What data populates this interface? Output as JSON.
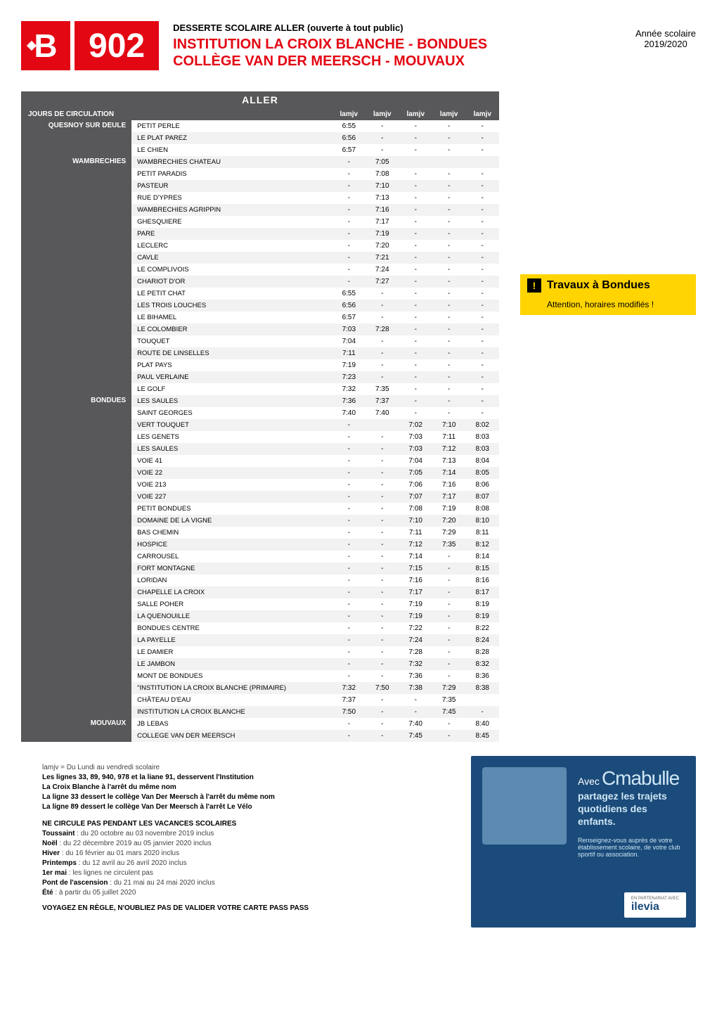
{
  "header": {
    "logo_letter": "B",
    "route_number": "902",
    "subtitle": "DESSERTE SCOLAIRE ALLER (ouverte à tout public)",
    "title_line1": "INSTITUTION LA CROIX BLANCHE - BONDUES",
    "title_line2": "COLLÈGE VAN DER MEERSCH - MOUVAUX",
    "year_label": "Année scolaire",
    "year_value": "2019/2020"
  },
  "table": {
    "aller_label": "ALLER",
    "jours_label": "JOURS DE CIRCULATION",
    "col_headers": [
      "lamjv",
      "lamjv",
      "lamjv",
      "lamjv",
      "lamjv"
    ],
    "zones": [
      {
        "name": "QUESNOY SUR DEULE",
        "rows": [
          {
            "stop": "PETIT PERLE",
            "t": [
              "6:55",
              "-",
              "-",
              "-",
              "-"
            ]
          },
          {
            "stop": "LE PLAT PAREZ",
            "t": [
              "6:56",
              "-",
              "-",
              "-",
              "-"
            ]
          },
          {
            "stop": "LE CHIEN",
            "t": [
              "6:57",
              "-",
              "-",
              "-",
              "-"
            ]
          }
        ]
      },
      {
        "name": "WAMBRECHIES",
        "rows": [
          {
            "stop": "WAMBRECHIES CHATEAU",
            "t": [
              "-",
              "7:05",
              "",
              "",
              ""
            ]
          },
          {
            "stop": "PETIT PARADIS",
            "t": [
              "-",
              "7:08",
              "-",
              "-",
              "-"
            ]
          },
          {
            "stop": "PASTEUR",
            "t": [
              "-",
              "7:10",
              "-",
              "-",
              "-"
            ]
          },
          {
            "stop": "RUE D'YPRES",
            "t": [
              "-",
              "7:13",
              "-",
              "-",
              "-"
            ]
          },
          {
            "stop": "WAMBRECHIES AGRIPPIN",
            "t": [
              "-",
              "7:16",
              "-",
              "-",
              "-"
            ]
          },
          {
            "stop": "GHESQUIERE",
            "t": [
              "-",
              "7:17",
              "-",
              "-",
              "-"
            ]
          },
          {
            "stop": "PARE",
            "t": [
              "-",
              "7:19",
              "-",
              "-",
              "-"
            ]
          },
          {
            "stop": "LECLERC",
            "t": [
              "-",
              "7:20",
              "-",
              "-",
              "-"
            ]
          },
          {
            "stop": "CAVLE",
            "t": [
              "-",
              "7:21",
              "-",
              "-",
              "-"
            ]
          },
          {
            "stop": "LE COMPLIVOIS",
            "t": [
              "-",
              "7:24",
              "-",
              "-",
              "-"
            ]
          },
          {
            "stop": "CHARIOT D'OR",
            "t": [
              "-",
              "7:27",
              "-",
              "-",
              "-"
            ]
          },
          {
            "stop": "LE PETIT CHAT",
            "t": [
              "6:55",
              "-",
              "-",
              "-",
              "-"
            ]
          },
          {
            "stop": "LES TROIS LOUCHES",
            "t": [
              "6:56",
              "-",
              "-",
              "-",
              "-"
            ]
          },
          {
            "stop": "LE BIHAMEL",
            "t": [
              "6:57",
              "-",
              "-",
              "-",
              "-"
            ]
          },
          {
            "stop": "LE COLOMBIER",
            "t": [
              "7:03",
              "7:28",
              "-",
              "-",
              "-"
            ]
          },
          {
            "stop": "TOUQUET",
            "t": [
              "7:04",
              "-",
              "-",
              "-",
              "-"
            ]
          },
          {
            "stop": "ROUTE DE LINSELLES",
            "t": [
              "7:11",
              "-",
              "-",
              "-",
              "-"
            ]
          },
          {
            "stop": "PLAT PAYS",
            "t": [
              "7:19",
              "-",
              "-",
              "-",
              "-"
            ]
          },
          {
            "stop": "PAUL VERLAINE",
            "t": [
              "7:23",
              "-",
              "-",
              "-",
              "-"
            ]
          },
          {
            "stop": "LE GOLF",
            "t": [
              "7:32",
              "7:35",
              "-",
              "-",
              "-"
            ]
          }
        ]
      },
      {
        "name": "BONDUES",
        "rows": [
          {
            "stop": "LES SAULES",
            "t": [
              "7:36",
              "7:37",
              "-",
              "-",
              "-"
            ]
          },
          {
            "stop": "SAINT GEORGES",
            "t": [
              "7:40",
              "7:40",
              "-",
              "-",
              "-"
            ]
          },
          {
            "stop": "VERT TOUQUET",
            "t": [
              "-",
              "",
              "7:02",
              "7:10",
              "8:02"
            ]
          },
          {
            "stop": "LES GENETS",
            "t": [
              "-",
              "-",
              "7:03",
              "7:11",
              "8:03"
            ]
          },
          {
            "stop": "LES SAULES",
            "t": [
              "-",
              "-",
              "7:03",
              "7:12",
              "8:03"
            ]
          },
          {
            "stop": "VOIE 41",
            "t": [
              "-",
              "-",
              "7:04",
              "7:13",
              "8:04"
            ]
          },
          {
            "stop": "VOIE 22",
            "t": [
              "-",
              "-",
              "7:05",
              "7:14",
              "8:05"
            ]
          },
          {
            "stop": "VOIE 213",
            "t": [
              "-",
              "-",
              "7:06",
              "7:16",
              "8:06"
            ]
          },
          {
            "stop": "VOIE 227",
            "t": [
              "-",
              "-",
              "7:07",
              "7:17",
              "8:07"
            ]
          },
          {
            "stop": "PETIT BONDUES",
            "t": [
              "-",
              "-",
              "7:08",
              "7:19",
              "8:08"
            ]
          },
          {
            "stop": "DOMAINE DE LA VIGNE",
            "t": [
              "-",
              "-",
              "7:10",
              "7:20",
              "8:10"
            ]
          },
          {
            "stop": "BAS CHEMIN",
            "t": [
              "-",
              "-",
              "7:11",
              "7:29",
              "8:11"
            ]
          },
          {
            "stop": "HOSPICE",
            "t": [
              "-",
              "-",
              "7:12",
              "7:35",
              "8:12"
            ]
          },
          {
            "stop": "CARROUSEL",
            "t": [
              "-",
              "-",
              "7:14",
              "-",
              "8:14"
            ]
          },
          {
            "stop": "FORT MONTAGNE",
            "t": [
              "-",
              "-",
              "7:15",
              "-",
              "8:15"
            ]
          },
          {
            "stop": "LORIDAN",
            "t": [
              "-",
              "-",
              "7:16",
              "-",
              "8:16"
            ]
          },
          {
            "stop": "CHAPELLE LA CROIX",
            "t": [
              "-",
              "-",
              "7:17",
              "-",
              "8:17"
            ]
          },
          {
            "stop": "SALLE POHER",
            "t": [
              "-",
              "-",
              "7:19",
              "-",
              "8:19"
            ]
          },
          {
            "stop": "LA QUENOUILLE",
            "t": [
              "-",
              "-",
              "7:19",
              "-",
              "8:19"
            ]
          },
          {
            "stop": "BONDUES CENTRE",
            "t": [
              "-",
              "-",
              "7:22",
              "-",
              "8:22"
            ]
          },
          {
            "stop": "LA PAYELLE",
            "t": [
              "-",
              "-",
              "7:24",
              "-",
              "8:24"
            ]
          },
          {
            "stop": "LE DAMIER",
            "t": [
              "-",
              "-",
              "7:28",
              "-",
              "8:28"
            ]
          },
          {
            "stop": "LE JAMBON",
            "t": [
              "-",
              "-",
              "7:32",
              "-",
              "8:32"
            ]
          },
          {
            "stop": "MONT DE BONDUES",
            "t": [
              "-",
              "-",
              "7:36",
              "-",
              "8:36"
            ]
          },
          {
            "stop": "\"INSTITUTION LA CROIX BLANCHE (PRIMAIRE)",
            "t": [
              "7:32",
              "7:50",
              "7:38",
              "7:29",
              "8:38"
            ]
          },
          {
            "stop": "CHÂTEAU D'EAU",
            "t": [
              "7:37",
              "-",
              "-",
              "7:35",
              ""
            ]
          },
          {
            "stop": "INSTITUTION LA CROIX BLANCHE",
            "t": [
              "7:50",
              "-",
              "-",
              "7:45",
              "-"
            ]
          }
        ]
      },
      {
        "name": "MOUVAUX",
        "rows": [
          {
            "stop": "JB LEBAS",
            "t": [
              "-",
              "-",
              "7:40",
              "-",
              "8:40"
            ]
          },
          {
            "stop": "COLLEGE VAN DER MEERSCH",
            "t": [
              "-",
              "-",
              "7:45",
              "-",
              "8:45"
            ]
          }
        ]
      }
    ]
  },
  "alert": {
    "title": "Travaux à Bondues",
    "body": "Attention, horaires modifiés !"
  },
  "notes": {
    "legend": "lamjv = Du Lundi au vendredi scolaire",
    "lines": [
      "Les lignes 33, 89, 940, 978 et la liane 91, desservent l'Institution",
      "La Croix Blanche à l'arrêt du même nom",
      "La ligne 33 dessert le collège Van Der Meersch à l'arrêt du même nom",
      "La ligne 89 dessert le collège Van Der Meersch à l'arrêt Le Vélo"
    ],
    "vac_title": "NE CIRCULE PAS PENDANT LES VACANCES SCOLAIRES",
    "vac": [
      {
        "k": "Toussaint",
        "v": ": du 20 octobre au 03 novembre 2019 inclus"
      },
      {
        "k": "Noël",
        "v": ": du 22 décembre 2019 au 05 janvier 2020 inclus"
      },
      {
        "k": "Hiver",
        "v": ": du 16 février au 01 mars 2020 inclus"
      },
      {
        "k": "Printemps",
        "v": ": du 12 avril au 26 avril 2020 inclus"
      },
      {
        "k": "1er mai",
        "v": ": les lignes ne circulent pas"
      },
      {
        "k": "Pont de l'ascension",
        "v": ": du 21 mai au 24 mai 2020 inclus"
      },
      {
        "k": "Été",
        "v": ": à partir du 05 juillet 2020"
      }
    ],
    "footer_bold": "VOYAGEZ EN RÈGLE, N'OUBLIEZ PAS DE VALIDER VOTRE CARTE PASS PASS"
  },
  "promo": {
    "avec": "Avec",
    "brand": "Cmabulle",
    "tagline": "partagez les trajets quotidiens des enfants.",
    "small": "Renseignez-vous auprès de votre établissement scolaire, de votre club sportif ou association.",
    "partner_small": "EN PARTENARIAT AVEC",
    "partner_brand": "ilevia"
  },
  "colors": {
    "brand_red": "#e30613",
    "dark_gray": "#58585a",
    "yellow": "#ffd400",
    "promo_blue": "#1a4b7a"
  }
}
